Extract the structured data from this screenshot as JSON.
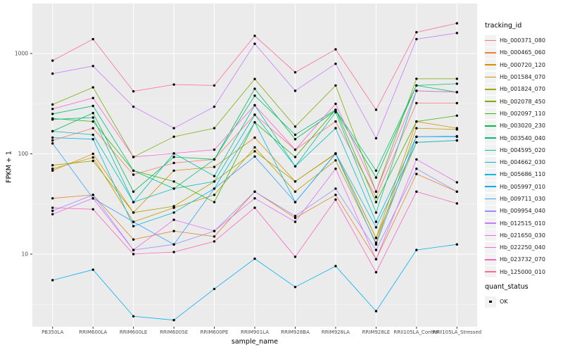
{
  "figure": {
    "panel_bg": "#EBEBEB",
    "grid_major_color": "#FFFFFF",
    "grid_minor_color": "#FFFFFF",
    "tick_mark_color": "#333333",
    "tick_label_color": "#4D4D4D",
    "point_color": "#000000"
  },
  "axes": {
    "y": {
      "title": "FPKM + 1",
      "scale": "log10",
      "ticks": [
        10,
        100,
        1000
      ]
    },
    "x": {
      "title": "sample_name"
    }
  },
  "legend": {
    "tracking": {
      "title": "tracking_id"
    },
    "quant": {
      "title": "quant_status",
      "items": [
        {
          "label": "OK",
          "glyph": "black-square-point"
        }
      ]
    }
  },
  "chart_data": {
    "type": "line",
    "title": "",
    "xlabel": "sample_name",
    "ylabel": "FPKM + 1",
    "y_scale": "log10",
    "ylim": [
      1.9,
      3200
    ],
    "grid": true,
    "legend_position": "right",
    "point_marker": "black dot at every vertex (quant_status = OK)",
    "x_categories": [
      "PB350LA",
      "RRIM600LA",
      "RRIM600LE",
      "RRIM600SE",
      "RRIM600PE",
      "RRIM901LA",
      "RRIM928BA",
      "RRIM928LA",
      "RRIM928LE",
      "RRII105LA_Control",
      "RRII105LA_Stressed"
    ],
    "series": [
      {
        "name": "Hb_000371_080",
        "color": "#F8766D",
        "values": [
          136,
          180,
          62,
          81,
          88,
          245,
          110,
          210,
          37,
          320,
          320
        ]
      },
      {
        "name": "Hb_000465_060",
        "color": "#EA8331",
        "values": [
          36,
          39,
          14,
          17,
          15,
          42,
          23,
          39,
          8.9,
          63,
          42
        ]
      },
      {
        "name": "Hb_000720_120",
        "color": "#D89000",
        "values": [
          68,
          100,
          26,
          68,
          74,
          145,
          53,
          101,
          14.5,
          210,
          180
        ]
      },
      {
        "name": "Hb_001584_070",
        "color": "#C09B00",
        "values": [
          71,
          92,
          21,
          29,
          39,
          116,
          42,
          86,
          13,
          180,
          175
        ]
      },
      {
        "name": "Hb_001824_070",
        "color": "#A3A500",
        "values": [
          77,
          85,
          26,
          30,
          53,
          106,
          53,
          100,
          14.5,
          130,
          136
        ]
      },
      {
        "name": "Hb_002078_450",
        "color": "#7CAE00",
        "values": [
          310,
          460,
          93,
          148,
          180,
          557,
          187,
          480,
          42,
          560,
          560
        ]
      },
      {
        "name": "Hb_002097_110",
        "color": "#39B600",
        "values": [
          225,
          210,
          68,
          53,
          33,
          206,
          93,
          275,
          33,
          210,
          240
        ]
      },
      {
        "name": "Hb_003020_230",
        "color": "#00BB4E",
        "values": [
          168,
          255,
          42,
          93,
          88,
          445,
          140,
          270,
          58,
          480,
          412
        ]
      },
      {
        "name": "Hb_003540_040",
        "color": "#00BF7D",
        "values": [
          250,
          300,
          68,
          45,
          88,
          380,
          155,
          275,
          68,
          480,
          500
        ]
      },
      {
        "name": "Hb_004595_020",
        "color": "#00C1A3",
        "values": [
          220,
          230,
          33,
          101,
          60,
          305,
          75,
          260,
          26,
          425,
          412
        ]
      },
      {
        "name": "Hb_004662_030",
        "color": "#00BFC4",
        "values": [
          168,
          155,
          33,
          45,
          53,
          245,
          75,
          180,
          21,
          148,
          150
        ]
      },
      {
        "name": "Hb_005686_110",
        "color": "#00BAE0",
        "values": [
          145,
          140,
          19,
          26,
          45,
          206,
          33,
          101,
          18.5,
          130,
          136
        ]
      },
      {
        "name": "Hb_005997_010",
        "color": "#00B0F6",
        "values": [
          5.5,
          7,
          2.4,
          2.2,
          4.5,
          9,
          4.7,
          7.6,
          2.7,
          11,
          12.5
        ]
      },
      {
        "name": "Hb_009711_030",
        "color": "#35A2FF",
        "values": [
          127,
          36,
          21,
          12.5,
          45,
          94,
          33,
          100,
          12.5,
          148,
          148
        ]
      },
      {
        "name": "Hb_009954_040",
        "color": "#9590FF",
        "values": [
          27,
          39,
          11,
          12.5,
          17,
          42,
          24,
          45,
          11,
          71,
          42
        ]
      },
      {
        "name": "Hb_012515_010",
        "color": "#C77CFF",
        "values": [
          630,
          750,
          295,
          180,
          295,
          1250,
          425,
          790,
          143,
          1390,
          1600
        ]
      },
      {
        "name": "Hb_021650_030",
        "color": "#E76BF3",
        "values": [
          25,
          36,
          11,
          22,
          17,
          36,
          21,
          71,
          8.9,
          88,
          52
        ]
      },
      {
        "name": "Hb_022250_040",
        "color": "#FA62DB",
        "values": [
          280,
          360,
          93,
          101,
          110,
          305,
          110,
          315,
          42,
          425,
          412
        ]
      },
      {
        "name": "Hb_023732_070",
        "color": "#FF62BC",
        "values": [
          29,
          28,
          10,
          10.5,
          13.4,
          29,
          9.4,
          35,
          6.6,
          42,
          32
        ]
      },
      {
        "name": "Hb_125000_010",
        "color": "#FF6A98",
        "values": [
          850,
          1390,
          420,
          490,
          480,
          1500,
          650,
          1100,
          275,
          1630,
          2000
        ]
      }
    ]
  }
}
